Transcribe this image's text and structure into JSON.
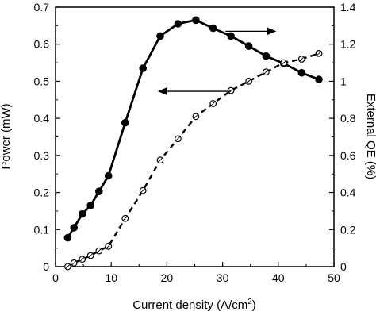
{
  "chart_data": {
    "type": "line",
    "title": "",
    "xlabel": "Current density (A/cm",
    "xlabel_superscript": "2",
    "xlabel_suffix": ")",
    "ylabel_left": "Power (mW)",
    "ylabel_right": "External QE (%)",
    "xlim": [
      0,
      50
    ],
    "ylim_left": [
      0,
      0.7
    ],
    "ylim_right": [
      0,
      1.4
    ],
    "xticks": [
      "0",
      "10",
      "20",
      "30",
      "40",
      "50"
    ],
    "yticks_left": [
      "0",
      "0.1",
      "0.2",
      "0.3",
      "0.4",
      "0.5",
      "0.6",
      "0.7"
    ],
    "yticks_right": [
      "0",
      "0.2",
      "0.4",
      "0.6",
      "0.8",
      "1",
      "1.2",
      "1.4"
    ],
    "grid": false,
    "series": [
      {
        "axis": "left",
        "style": "solid",
        "marker": "filled-circle",
        "color": "#000000",
        "x": [
          2.2,
          3.3,
          4.8,
          6.3,
          7.8,
          9.5,
          12.5,
          15.7,
          18.8,
          22.0,
          25.2,
          28.3,
          31.5,
          34.7,
          37.8,
          41.0,
          44.2,
          47.3
        ],
        "y": [
          0.078,
          0.105,
          0.142,
          0.165,
          0.203,
          0.245,
          0.388,
          0.535,
          0.622,
          0.655,
          0.665,
          0.643,
          0.622,
          0.595,
          0.568,
          0.548,
          0.523,
          0.505
        ]
      },
      {
        "axis": "right",
        "style": "dashed",
        "marker": "open-circle",
        "color": "#000000",
        "x": [
          2.2,
          3.3,
          4.8,
          6.3,
          7.8,
          9.5,
          12.5,
          15.7,
          18.8,
          22.0,
          25.2,
          28.3,
          31.5,
          34.7,
          37.8,
          41.0,
          44.2,
          47.3
        ],
        "y": [
          0.0,
          0.02,
          0.04,
          0.06,
          0.085,
          0.11,
          0.26,
          0.41,
          0.575,
          0.69,
          0.81,
          0.88,
          0.95,
          1.0,
          1.05,
          1.1,
          1.12,
          1.15
        ]
      }
    ],
    "annotations": [
      {
        "type": "arrow",
        "direction": "right",
        "from": [
          30.5,
          0.635
        ],
        "to": [
          39.5,
          0.635
        ]
      },
      {
        "type": "arrow",
        "direction": "left",
        "from": [
          31.5,
          0.473
        ],
        "to": [
          18.5,
          0.473
        ]
      }
    ]
  }
}
